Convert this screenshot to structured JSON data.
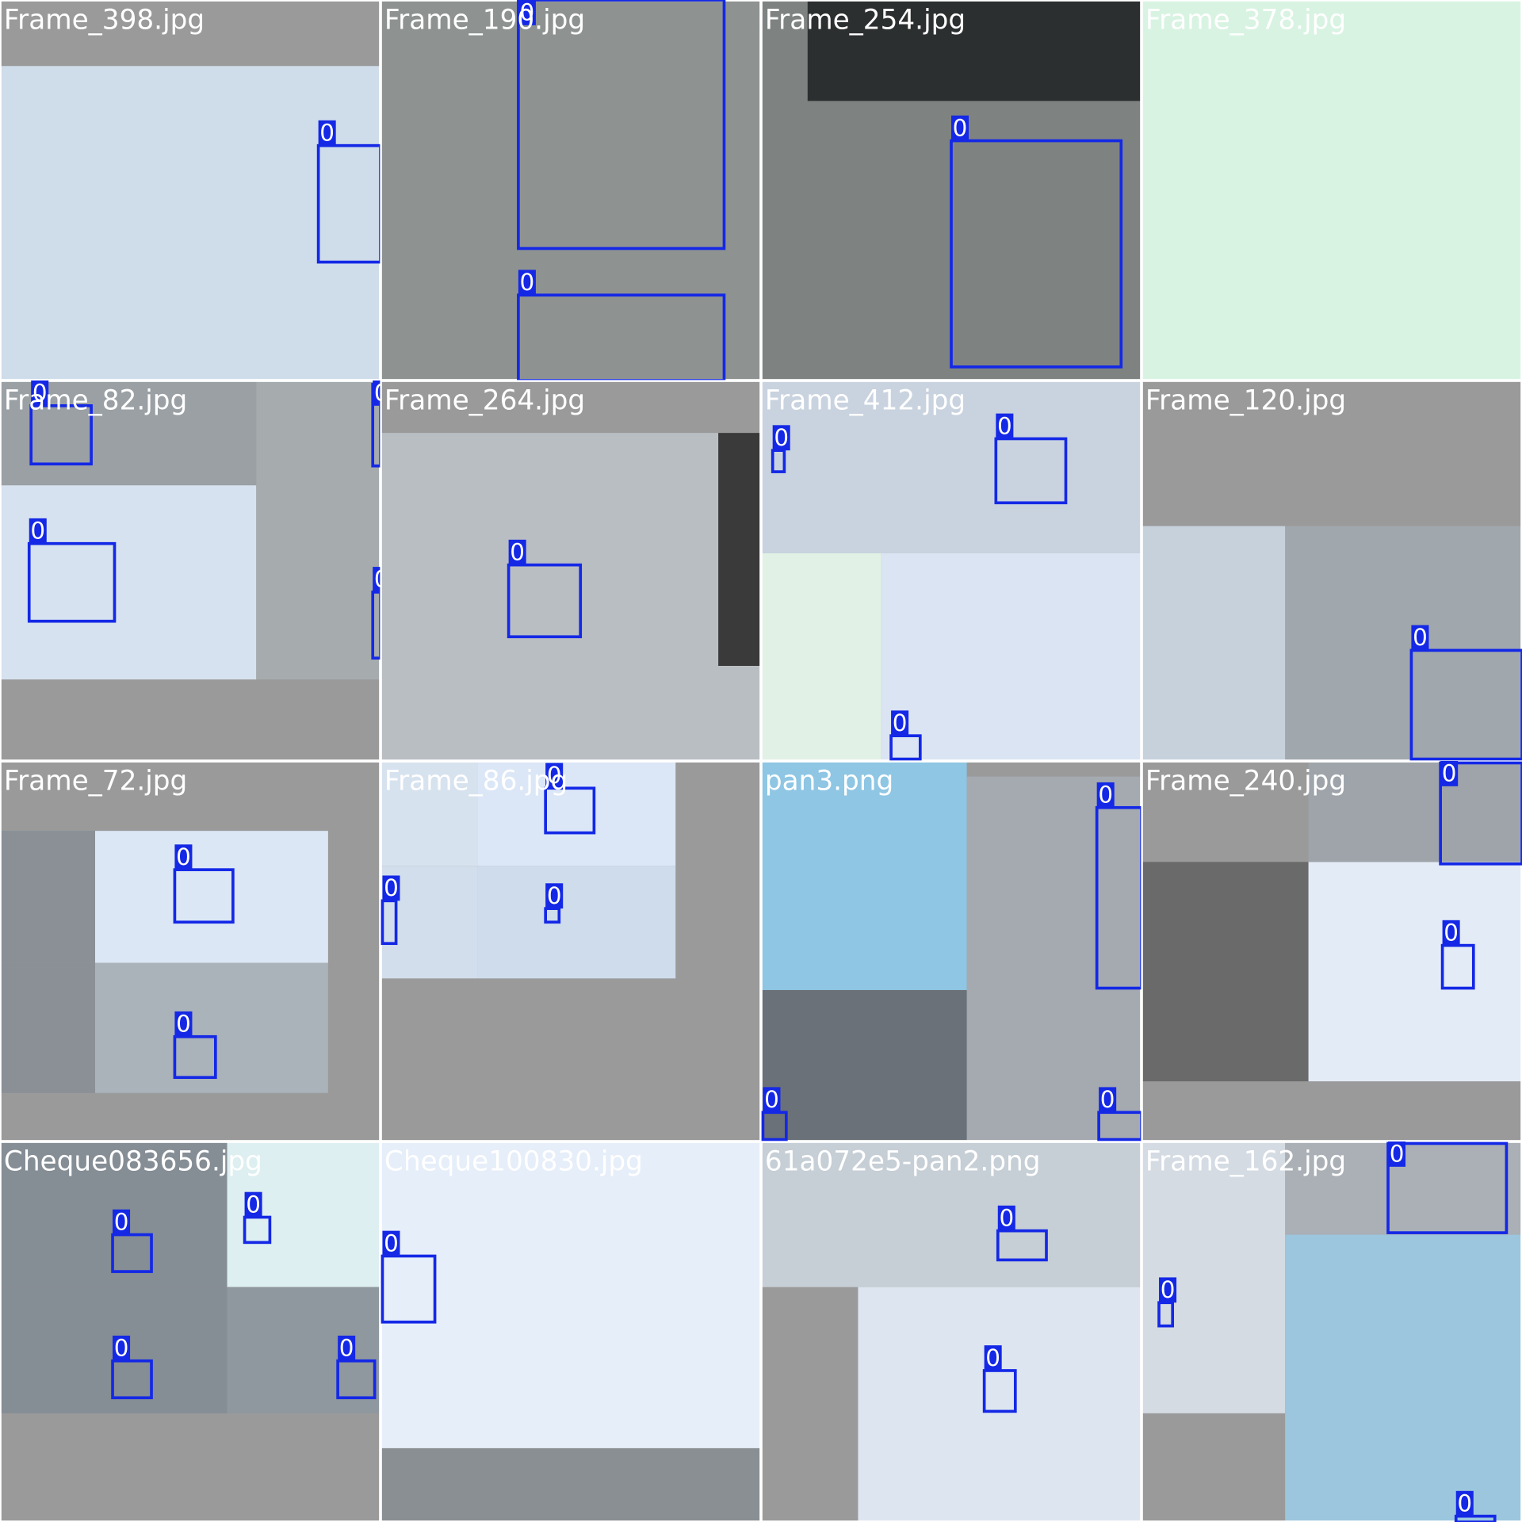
{
  "tiles": [
    {
      "filename": "Frame_398.jpg",
      "boxes": [
        {
          "label": "0"
        }
      ]
    },
    {
      "filename": "Frame_190.jpg",
      "boxes": [
        {
          "label": "0"
        },
        {
          "label": "0"
        }
      ]
    },
    {
      "filename": "Frame_254.jpg",
      "boxes": [
        {
          "label": "0"
        }
      ]
    },
    {
      "filename": "Frame_378.jpg",
      "boxes": []
    },
    {
      "filename": "Frame_82.jpg",
      "boxes": [
        {
          "label": "0"
        },
        {
          "label": "0"
        },
        {
          "label": "0"
        },
        {
          "label": "0"
        }
      ]
    },
    {
      "filename": "Frame_264.jpg",
      "boxes": [
        {
          "label": "0"
        }
      ]
    },
    {
      "filename": "Frame_412.jpg",
      "boxes": [
        {
          "label": "0"
        },
        {
          "label": "0"
        },
        {
          "label": "0"
        }
      ]
    },
    {
      "filename": "Frame_120.jpg",
      "boxes": [
        {
          "label": "0"
        }
      ]
    },
    {
      "filename": "Frame_72.jpg",
      "boxes": [
        {
          "label": "0"
        },
        {
          "label": "0"
        }
      ]
    },
    {
      "filename": "Frame_86.jpg",
      "boxes": [
        {
          "label": "0"
        },
        {
          "label": "0"
        },
        {
          "label": "0"
        }
      ]
    },
    {
      "filename": "pan3.png",
      "boxes": [
        {
          "label": "0"
        },
        {
          "label": "0"
        },
        {
          "label": "0"
        }
      ]
    },
    {
      "filename": "Frame_240.jpg",
      "boxes": [
        {
          "label": "0"
        },
        {
          "label": "0"
        }
      ]
    },
    {
      "filename": "Cheque083656.jpg",
      "boxes": [
        {
          "label": "0"
        },
        {
          "label": "0"
        },
        {
          "label": "0"
        },
        {
          "label": "0"
        }
      ]
    },
    {
      "filename": "Cheque100830.jpg",
      "boxes": [
        {
          "label": "0"
        }
      ]
    },
    {
      "filename": "61a072e5-pan2.png",
      "boxes": [
        {
          "label": "0"
        },
        {
          "label": "0"
        }
      ]
    },
    {
      "filename": "Frame_162.jpg",
      "boxes": [
        {
          "label": "0"
        },
        {
          "label": "0"
        },
        {
          "label": "0"
        }
      ]
    }
  ]
}
